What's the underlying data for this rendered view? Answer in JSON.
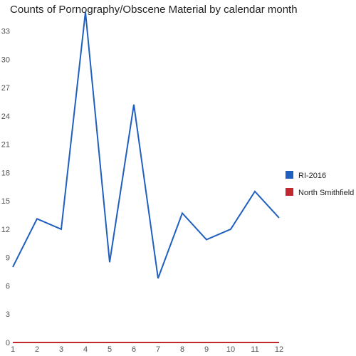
{
  "chart_data": {
    "type": "line",
    "title": "Counts of Pornography/Obscene Material by calendar month",
    "xlabel": "",
    "ylabel": "",
    "x": [
      1,
      2,
      3,
      4,
      5,
      6,
      7,
      8,
      9,
      10,
      11,
      12
    ],
    "xlim": [
      1,
      12
    ],
    "ylim": [
      0,
      35
    ],
    "yticks": [
      0,
      3,
      6,
      9,
      12,
      15,
      18,
      21,
      24,
      27,
      30,
      33
    ],
    "grid": false,
    "legend_position": "right",
    "series": [
      {
        "name": "RI-2016",
        "color": "#1f5fbf",
        "values": [
          8,
          13.1,
          12,
          35,
          8.5,
          25.2,
          6.8,
          13.7,
          10.9,
          12,
          16,
          13.2
        ]
      },
      {
        "name": "North Smithfield",
        "color": "#c0282d",
        "values": [
          0,
          0,
          0,
          0,
          0,
          0,
          0,
          0,
          0,
          0,
          0,
          0
        ]
      }
    ]
  }
}
